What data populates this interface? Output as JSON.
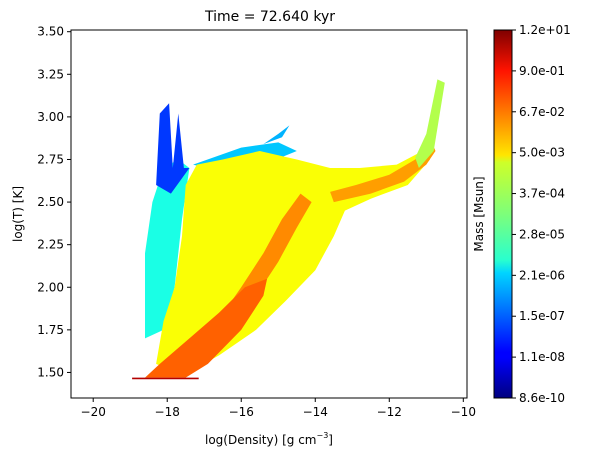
{
  "chart_data": {
    "type": "heatmap",
    "title": "Time = 72.640 kyr",
    "xlabel_main": "log(Density) [g cm",
    "xlabel_exp": "−3",
    "xlabel_close": "]",
    "ylabel": "log(T) [K]",
    "xlim": [
      -20.6,
      -9.9
    ],
    "ylim": [
      1.35,
      3.51
    ],
    "x_ticks": [
      -20,
      -18,
      -16,
      -14,
      -12,
      -10
    ],
    "x_tick_labels": [
      "−20",
      "−18",
      "−16",
      "−14",
      "−12",
      "−10"
    ],
    "y_ticks": [
      1.5,
      1.75,
      2.0,
      2.25,
      2.5,
      2.75,
      3.0,
      3.25,
      3.5
    ],
    "y_tick_labels": [
      "1.50",
      "1.75",
      "2.00",
      "2.25",
      "2.50",
      "2.75",
      "3.00",
      "3.25",
      "3.50"
    ],
    "colorbar": {
      "label": "Mass [Msun]",
      "scale": "log",
      "colormap": "jet",
      "tick_labels": [
        "8.6e-10",
        "1.1e-08",
        "1.5e-07",
        "2.1e-06",
        "2.8e-05",
        "3.7e-04",
        "5.0e-03",
        "6.7e-02",
        "9.0e-01",
        "1.2e+01"
      ]
    },
    "regions": [
      {
        "name": "base-strip",
        "polygon": [
          [
            -18.95,
            1.46
          ],
          [
            -17.15,
            1.46
          ],
          [
            -17.15,
            1.47
          ],
          [
            -18.95,
            1.47
          ]
        ],
        "color_level": 0.95
      },
      {
        "name": "cold-diagonal",
        "polygon": [
          [
            -18.6,
            1.47
          ],
          [
            -17.5,
            1.47
          ],
          [
            -16.9,
            1.55
          ],
          [
            -16.0,
            1.75
          ],
          [
            -15.4,
            1.95
          ],
          [
            -15.3,
            2.05
          ],
          [
            -15.9,
            2.0
          ],
          [
            -16.6,
            1.85
          ],
          [
            -17.4,
            1.7
          ],
          [
            -18.2,
            1.55
          ]
        ],
        "color_level": 0.78
      },
      {
        "name": "main-ridge",
        "polygon": [
          [
            -16.8,
            1.75
          ],
          [
            -16.2,
            1.75
          ],
          [
            -15.6,
            1.95
          ],
          [
            -15.0,
            2.15
          ],
          [
            -14.5,
            2.35
          ],
          [
            -14.1,
            2.5
          ],
          [
            -14.4,
            2.55
          ],
          [
            -14.9,
            2.4
          ],
          [
            -15.4,
            2.2
          ],
          [
            -16.0,
            2.0
          ]
        ],
        "color_level": 0.74
      },
      {
        "name": "warm-branch",
        "polygon": [
          [
            -13.5,
            2.5
          ],
          [
            -12.5,
            2.55
          ],
          [
            -11.6,
            2.62
          ],
          [
            -11.0,
            2.72
          ],
          [
            -10.75,
            2.8
          ],
          [
            -10.85,
            2.85
          ],
          [
            -11.3,
            2.75
          ],
          [
            -12.0,
            2.66
          ],
          [
            -12.9,
            2.6
          ],
          [
            -13.6,
            2.56
          ]
        ],
        "color_level": 0.72
      },
      {
        "name": "hot-tail",
        "polygon": [
          [
            -11.2,
            2.7
          ],
          [
            -10.8,
            2.8
          ],
          [
            -10.5,
            3.2
          ],
          [
            -10.7,
            3.22
          ],
          [
            -11.0,
            2.9
          ],
          [
            -11.3,
            2.76
          ]
        ],
        "color_level": 0.55
      },
      {
        "name": "envelope",
        "polygon": [
          [
            -18.3,
            1.55
          ],
          [
            -17.6,
            1.48
          ],
          [
            -16.6,
            1.6
          ],
          [
            -15.6,
            1.75
          ],
          [
            -14.8,
            1.92
          ],
          [
            -14.0,
            2.1
          ],
          [
            -13.5,
            2.3
          ],
          [
            -13.2,
            2.45
          ],
          [
            -12.5,
            2.52
          ],
          [
            -11.5,
            2.6
          ],
          [
            -10.9,
            2.75
          ],
          [
            -11.1,
            2.8
          ],
          [
            -11.8,
            2.72
          ],
          [
            -12.8,
            2.7
          ],
          [
            -13.6,
            2.7
          ],
          [
            -14.5,
            2.75
          ],
          [
            -15.5,
            2.8
          ],
          [
            -16.5,
            2.75
          ],
          [
            -17.2,
            2.72
          ],
          [
            -17.5,
            2.6
          ],
          [
            -17.6,
            2.3
          ],
          [
            -17.8,
            2.0
          ],
          [
            -18.1,
            1.8
          ]
        ],
        "color_level": 0.62
      },
      {
        "name": "low-density-plume",
        "polygon": [
          [
            -18.6,
            1.7
          ],
          [
            -18.1,
            1.75
          ],
          [
            -17.8,
            2.0
          ],
          [
            -17.6,
            2.4
          ],
          [
            -17.4,
            2.7
          ],
          [
            -17.7,
            2.75
          ],
          [
            -18.1,
            2.7
          ],
          [
            -18.4,
            2.5
          ],
          [
            -18.6,
            2.2
          ]
        ],
        "color_level": 0.4
      },
      {
        "name": "upper-hot-cloud",
        "polygon": [
          [
            -17.3,
            2.72
          ],
          [
            -16.0,
            2.82
          ],
          [
            -15.0,
            2.85
          ],
          [
            -14.5,
            2.8
          ],
          [
            -15.4,
            2.72
          ],
          [
            -16.6,
            2.68
          ]
        ],
        "color_level": 0.32
      },
      {
        "name": "blue-spikes",
        "polygon": [
          [
            -18.3,
            2.6
          ],
          [
            -18.2,
            3.02
          ],
          [
            -17.95,
            3.08
          ],
          [
            -17.85,
            2.7
          ],
          [
            -17.7,
            3.02
          ],
          [
            -17.55,
            2.7
          ],
          [
            -17.4,
            2.7
          ],
          [
            -17.9,
            2.55
          ]
        ],
        "color_level": 0.18
      },
      {
        "name": "upper-streak",
        "polygon": [
          [
            -15.4,
            2.84
          ],
          [
            -15.0,
            2.9
          ],
          [
            -14.7,
            2.95
          ],
          [
            -14.9,
            2.88
          ]
        ],
        "color_level": 0.3
      }
    ]
  }
}
